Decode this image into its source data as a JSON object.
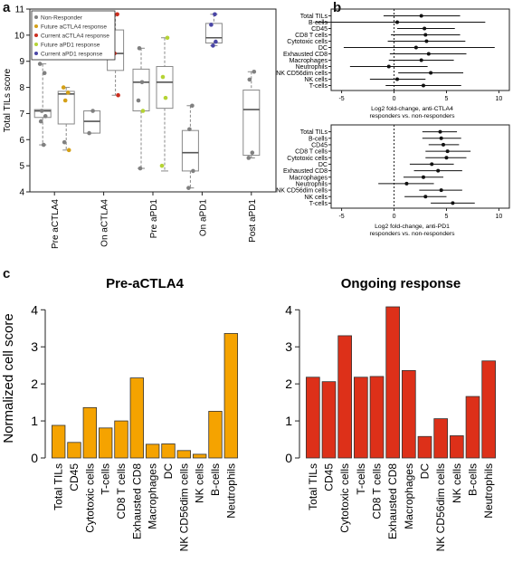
{
  "panel_labels": {
    "a": "a",
    "b": "b",
    "c": "c"
  },
  "chart_data": [
    {
      "id": "a",
      "type": "box",
      "ylabel": "Total TILs score",
      "ylim": [
        4,
        11
      ],
      "yticks": [
        4,
        5,
        6,
        7,
        8,
        9,
        10,
        11
      ],
      "legend": [
        {
          "label": "Non-Responder",
          "color": "#808080"
        },
        {
          "label": "Future aCTLA4 response",
          "color": "#d4a017"
        },
        {
          "label": "Current aCTLA4 response",
          "color": "#cc2e1f"
        },
        {
          "label": "Future aPD1 response",
          "color": "#b5d334"
        },
        {
          "label": "Current aPD1 response",
          "color": "#4a46a6"
        }
      ],
      "groups": [
        {
          "label": "Pre aCTLA4",
          "boxes": [
            {
              "min": 5.8,
              "q1": 6.85,
              "median": 7.1,
              "q3": 7.15,
              "max": 8.9
            },
            {
              "min": 5.6,
              "q1": 6.6,
              "median": 7.75,
              "q3": 7.85,
              "max": 8.0
            }
          ]
        },
        {
          "label": "On aCTLA4",
          "boxes": [
            {
              "min": 6.25,
              "q1": 6.25,
              "median": 6.7,
              "q3": 7.1,
              "max": 7.1
            },
            {
              "min": 7.7,
              "q1": 8.65,
              "median": 9.3,
              "q3": 10.2,
              "max": 10.8
            }
          ]
        },
        {
          "label": "Pre aPD1",
          "boxes": [
            {
              "min": 4.9,
              "q1": 7.1,
              "median": 8.2,
              "q3": 8.7,
              "max": 9.5
            },
            {
              "min": 4.8,
              "q1": 7.2,
              "median": 8.2,
              "q3": 8.8,
              "max": 9.9
            }
          ]
        },
        {
          "label": "On aPD1",
          "boxes": [
            {
              "min": 4.15,
              "q1": 4.8,
              "median": 5.5,
              "q3": 6.35,
              "max": 7.3
            },
            {
              "min": 9.6,
              "q1": 9.7,
              "median": 9.9,
              "q3": 10.45,
              "max": 10.8
            }
          ]
        },
        {
          "label": "Post aPD1",
          "boxes": [
            {
              "min": 5.3,
              "q1": 5.4,
              "median": 7.15,
              "q3": 7.9,
              "max": 8.6
            }
          ]
        }
      ],
      "points": [
        {
          "group": 0,
          "box": 0,
          "y": 8.9,
          "c": 0
        },
        {
          "group": 0,
          "box": 0,
          "y": 8.55,
          "c": 0
        },
        {
          "group": 0,
          "box": 0,
          "y": 7.1,
          "c": 0
        },
        {
          "group": 0,
          "box": 0,
          "y": 6.9,
          "c": 0
        },
        {
          "group": 0,
          "box": 0,
          "y": 6.7,
          "c": 0
        },
        {
          "group": 0,
          "box": 0,
          "y": 5.8,
          "c": 0
        },
        {
          "group": 0,
          "box": 1,
          "y": 8.0,
          "c": 1
        },
        {
          "group": 0,
          "box": 1,
          "y": 7.8,
          "c": 1
        },
        {
          "group": 0,
          "box": 1,
          "y": 7.5,
          "c": 1
        },
        {
          "group": 0,
          "box": 1,
          "y": 5.6,
          "c": 1
        },
        {
          "group": 0,
          "box": 1,
          "y": 5.9,
          "c": 0
        },
        {
          "group": 1,
          "box": 0,
          "y": 7.1,
          "c": 0
        },
        {
          "group": 1,
          "box": 0,
          "y": 6.25,
          "c": 0
        },
        {
          "group": 1,
          "box": 1,
          "y": 10.8,
          "c": 2
        },
        {
          "group": 1,
          "box": 1,
          "y": 9.3,
          "c": 2
        },
        {
          "group": 1,
          "box": 1,
          "y": 7.7,
          "c": 2
        },
        {
          "group": 2,
          "box": 0,
          "y": 9.5,
          "c": 0
        },
        {
          "group": 2,
          "box": 0,
          "y": 8.2,
          "c": 0
        },
        {
          "group": 2,
          "box": 0,
          "y": 7.5,
          "c": 0
        },
        {
          "group": 2,
          "box": 0,
          "y": 7.1,
          "c": 3
        },
        {
          "group": 2,
          "box": 0,
          "y": 4.9,
          "c": 0
        },
        {
          "group": 2,
          "box": 1,
          "y": 9.9,
          "c": 3
        },
        {
          "group": 2,
          "box": 1,
          "y": 8.4,
          "c": 3
        },
        {
          "group": 2,
          "box": 1,
          "y": 7.6,
          "c": 3
        },
        {
          "group": 2,
          "box": 1,
          "y": 5.0,
          "c": 3
        },
        {
          "group": 3,
          "box": 0,
          "y": 7.3,
          "c": 0
        },
        {
          "group": 3,
          "box": 0,
          "y": 6.4,
          "c": 0
        },
        {
          "group": 3,
          "box": 0,
          "y": 4.8,
          "c": 0
        },
        {
          "group": 3,
          "box": 0,
          "y": 4.15,
          "c": 0
        },
        {
          "group": 3,
          "box": 1,
          "y": 10.8,
          "c": 4
        },
        {
          "group": 3,
          "box": 1,
          "y": 10.4,
          "c": 4
        },
        {
          "group": 3,
          "box": 1,
          "y": 9.75,
          "c": 4
        },
        {
          "group": 3,
          "box": 1,
          "y": 9.6,
          "c": 4
        },
        {
          "group": 4,
          "box": 0,
          "y": 8.6,
          "c": 0
        },
        {
          "group": 4,
          "box": 0,
          "y": 8.3,
          "c": 0
        },
        {
          "group": 4,
          "box": 0,
          "y": 5.5,
          "c": 0
        },
        {
          "group": 4,
          "box": 0,
          "y": 5.3,
          "c": 0
        }
      ]
    },
    {
      "id": "b-top",
      "type": "forest",
      "xlabel": "Log2 fold-change, anti-CTLA4\nresponders vs. non-responders",
      "xlim": [
        -6,
        11
      ],
      "xticks": [
        -5,
        0,
        5,
        10
      ],
      "rows": [
        {
          "label": "Total TILs",
          "est": 2.6,
          "lo": -1.0,
          "hi": 6.3
        },
        {
          "label": "B-cells",
          "est": 0.3,
          "lo": -7.5,
          "hi": 8.7
        },
        {
          "label": "CD45",
          "est": 2.9,
          "lo": 0.3,
          "hi": 5.8
        },
        {
          "label": "CD8 T cells",
          "est": 3.0,
          "lo": -0.3,
          "hi": 6.3
        },
        {
          "label": "Cytotoxic cells",
          "est": 3.1,
          "lo": -0.6,
          "hi": 6.8
        },
        {
          "label": "DC",
          "est": 2.1,
          "lo": -4.8,
          "hi": 9.6
        },
        {
          "label": "Exhausted CD8",
          "est": 3.3,
          "lo": -0.4,
          "hi": 6.9
        },
        {
          "label": "Macrophages",
          "est": 2.6,
          "lo": -0.5,
          "hi": 5.7
        },
        {
          "label": "Neutrophils",
          "est": -0.5,
          "lo": -4.2,
          "hi": 3.2
        },
        {
          "label": "NK CD56dim cells",
          "est": 3.5,
          "lo": 0.4,
          "hi": 6.6
        },
        {
          "label": "NK cells",
          "est": 0.3,
          "lo": -2.3,
          "hi": 3.0
        },
        {
          "label": "T-cells",
          "est": 2.8,
          "lo": -0.8,
          "hi": 6.4
        }
      ]
    },
    {
      "id": "b-bottom",
      "type": "forest",
      "xlabel": "Log2 fold-change, anti-PD1\nresponders vs. non-responders",
      "xlim": [
        -6,
        11
      ],
      "xticks": [
        -5,
        0,
        5,
        10
      ],
      "rows": [
        {
          "label": "Total TILs",
          "est": 4.4,
          "lo": 2.7,
          "hi": 6.0
        },
        {
          "label": "B-cells",
          "est": 4.5,
          "lo": 2.7,
          "hi": 6.4
        },
        {
          "label": "CD45",
          "est": 4.7,
          "lo": 3.3,
          "hi": 6.2
        },
        {
          "label": "CD8 T cells",
          "est": 5.1,
          "lo": 3.0,
          "hi": 7.3
        },
        {
          "label": "Cytotoxic cells",
          "est": 5.0,
          "lo": 3.0,
          "hi": 6.9
        },
        {
          "label": "DC",
          "est": 3.6,
          "lo": 1.5,
          "hi": 5.7
        },
        {
          "label": "Exhausted CD8",
          "est": 4.2,
          "lo": 1.9,
          "hi": 6.5
        },
        {
          "label": "Macrophages",
          "est": 2.8,
          "lo": 0.9,
          "hi": 4.7
        },
        {
          "label": "Neutrophils",
          "est": 1.2,
          "lo": -1.5,
          "hi": 3.8
        },
        {
          "label": "NK CD56dim cells",
          "est": 4.5,
          "lo": 2.4,
          "hi": 6.5
        },
        {
          "label": "NK cells",
          "est": 3.0,
          "lo": 1.0,
          "hi": 5.0
        },
        {
          "label": "T-cells",
          "est": 5.6,
          "lo": 3.5,
          "hi": 7.7
        }
      ]
    },
    {
      "id": "c-left",
      "type": "bar",
      "title": "Pre-aCTLA4",
      "ylabel": "Normalized cell score",
      "ylim": [
        0,
        4.3
      ],
      "yticks": [
        0,
        1,
        2,
        3,
        4
      ],
      "color": "#f5a300",
      "categories": [
        "Total TILs",
        "CD45",
        "Cytotoxic cells",
        "T-cells",
        "CD8 T cells",
        "Exhausted CD8",
        "Macrophages",
        "DC",
        "NK CD56dim cells",
        "NK cells",
        "B-cells",
        "Neutrophils"
      ],
      "values": [
        0.88,
        0.42,
        1.36,
        0.81,
        1.0,
        2.16,
        0.37,
        0.38,
        0.2,
        0.1,
        1.26,
        3.36
      ]
    },
    {
      "id": "c-right",
      "type": "bar",
      "title": "Ongoing response",
      "ylim": [
        0,
        4.3
      ],
      "yticks": [
        0,
        1,
        2,
        3,
        4
      ],
      "color": "#dd3019",
      "categories": [
        "Total TILs",
        "CD45",
        "Cytotoxic cells",
        "T-cells",
        "CD8 T cells",
        "Exhausted CD8",
        "Macrophages",
        "DC",
        "NK CD56dim cells",
        "NK cells",
        "B-cells",
        "Neutrophils"
      ],
      "values": [
        2.18,
        2.06,
        3.3,
        2.18,
        2.2,
        4.08,
        2.36,
        0.58,
        1.06,
        0.6,
        1.66,
        2.62
      ]
    }
  ]
}
